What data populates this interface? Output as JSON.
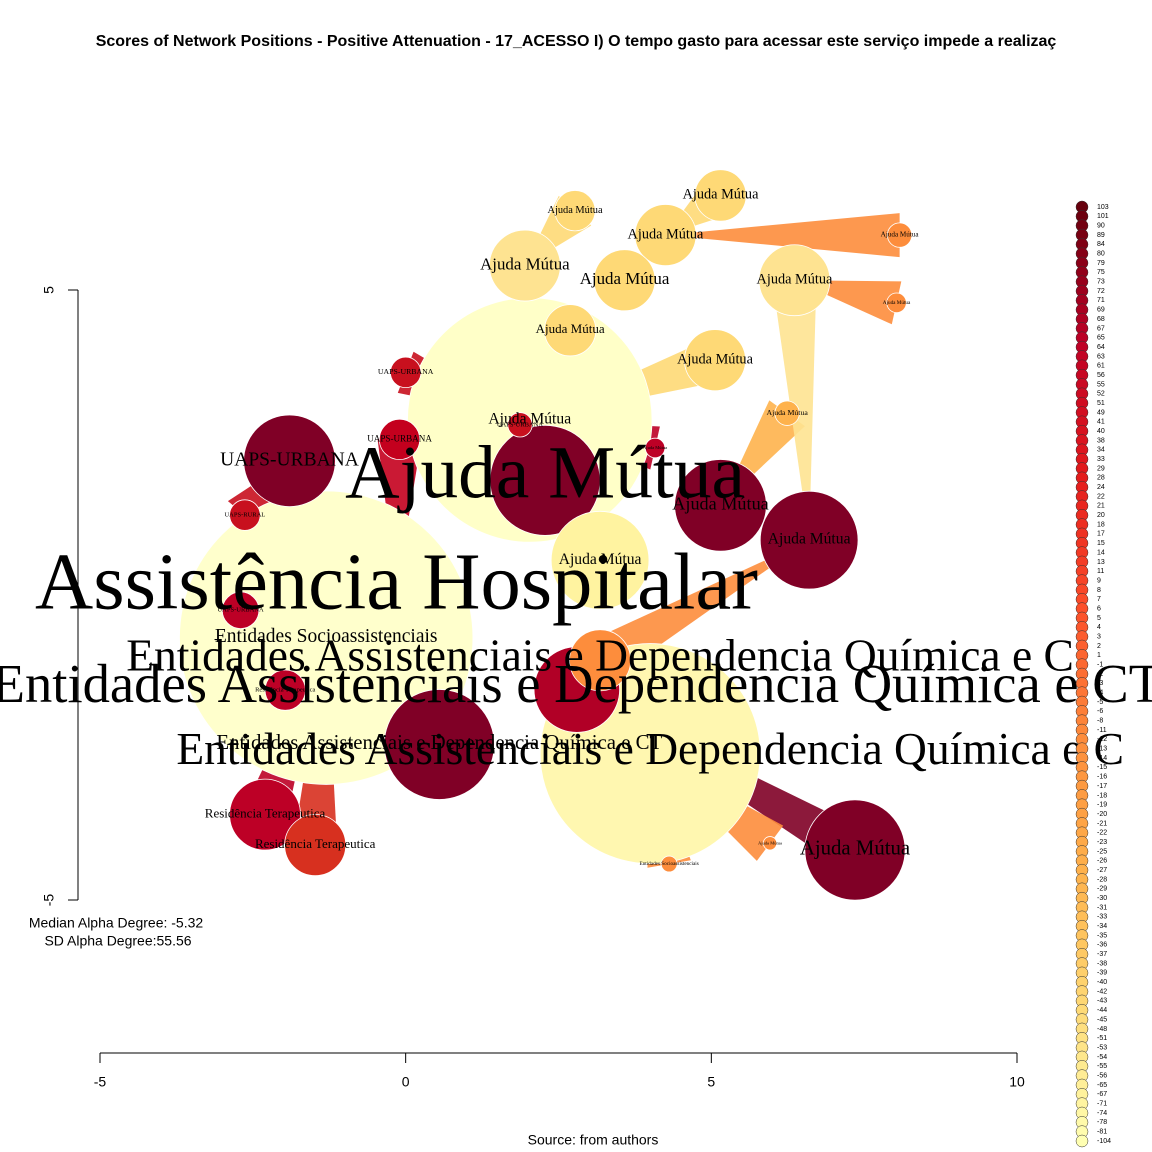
{
  "chart_data": {
    "type": "network",
    "title": "Scores of Network Positions - Positive Attenuation - 17_ACESSO I) O tempo gasto para acessar este serviço impede a realizaç",
    "xlim": [
      -5,
      10
    ],
    "xticks": [
      -5,
      0,
      5,
      10
    ],
    "ylim": [
      -5,
      5
    ],
    "yticks": [
      -5,
      5
    ],
    "annotations": [
      "Median Alpha Degree: -5.32",
      "SD Alpha Degree:55.56"
    ],
    "source": "Source: from authors",
    "palette": [
      "#67000d",
      "#bd0026",
      "#e31a1c",
      "#fc4e2a",
      "#fd8d3c",
      "#feb24c",
      "#fed976",
      "#ffffb2"
    ],
    "legend": {
      "values": [
        103,
        101,
        90,
        89,
        84,
        80,
        79,
        75,
        73,
        72,
        71,
        69,
        68,
        67,
        65,
        64,
        63,
        61,
        56,
        55,
        52,
        51,
        49,
        41,
        40,
        38,
        34,
        33,
        29,
        28,
        24,
        22,
        21,
        20,
        18,
        17,
        15,
        14,
        13,
        11,
        9,
        8,
        7,
        6,
        5,
        4,
        3,
        2,
        1,
        -1,
        -2,
        -3,
        -4,
        -5,
        -6,
        -8,
        -11,
        -12,
        -13,
        -14,
        -15,
        -16,
        -17,
        -18,
        -19,
        -20,
        -21,
        -22,
        -23,
        -25,
        -26,
        -27,
        -28,
        -29,
        -30,
        -31,
        -33,
        -34,
        -35,
        -36,
        -37,
        -38,
        -39,
        -40,
        -42,
        -43,
        -44,
        -45,
        -48,
        -51,
        -53,
        -54,
        -55,
        -56,
        -65,
        -67,
        -71,
        -74,
        -78,
        -81,
        -104
      ]
    },
    "nodes": [
      {
        "x": 4.0,
        "y": -2.6,
        "size": 1.8,
        "color": "#fff7b0",
        "label": "Entidades Assistenciais e Dependencia Química e C",
        "cex": 3.5
      },
      {
        "x": 2.03,
        "y": 2.87,
        "size": 2.0,
        "color": "#ffffc8",
        "label": "Ajuda Mútua",
        "cex": 1.2
      },
      {
        "x": 2.28,
        "y": 1.88,
        "size": 0.9,
        "color": "#800026",
        "label": "Ajuda Mútua",
        "cex": 5.8
      },
      {
        "x": -0.15,
        "y": 0.08,
        "size": 0.6,
        "color": "#e31a1c",
        "label": "Assistência Hospitalar",
        "cex": 6.2
      },
      {
        "x": 2.8,
        "y": -1.55,
        "size": 0.7,
        "color": "#b10026",
        "label": "Entidades Assistenciais e Dependencia Química e CT",
        "cex": 4.2
      },
      {
        "x": 3.18,
        "y": -1.07,
        "size": 0.5,
        "color": "#fd8d3c",
        "label": "Entidades Assistenciais e Dependencia Química e C",
        "cex": 3.5
      },
      {
        "x": -1.3,
        "y": -0.7,
        "size": 2.4,
        "color": "#ffffcc",
        "label": "Entidades Socioassistenciais",
        "cex": 1.5
      },
      {
        "x": -1.9,
        "y": 2.2,
        "size": 0.75,
        "color": "#800026",
        "label": "UAPS-URBANA",
        "cex": 1.5
      },
      {
        "x": 6.6,
        "y": 0.9,
        "size": 0.8,
        "color": "#800026",
        "label": "Ajuda Mútua",
        "cex": 1.2
      },
      {
        "x": 7.35,
        "y": -4.18,
        "size": 0.82,
        "color": "#800026",
        "label": "Ajuda Mútua",
        "cex": 1.6
      },
      {
        "x": 5.15,
        "y": 1.47,
        "size": 0.75,
        "color": "#800026",
        "label": "Ajuda Mútua",
        "cex": 1.4
      },
      {
        "x": 0.55,
        "y": -2.45,
        "size": 0.9,
        "color": "#800026",
        "label": "Entidades Assistenciais e Dependencia Química e CT",
        "cex": 1.6
      },
      {
        "x": -2.3,
        "y": -3.6,
        "size": 0.58,
        "color": "#bd0026",
        "label": "Residência Terapeutica",
        "cex": 1.0
      },
      {
        "x": -1.48,
        "y": -4.1,
        "size": 0.5,
        "color": "#d7301f",
        "label": "Residência Terapeutica",
        "cex": 1.0
      },
      {
        "x": -0.1,
        "y": 2.55,
        "size": 0.33,
        "color": "#c4001e",
        "label": "UAPS-URBANA",
        "cex": 0.7
      },
      {
        "x": 0.0,
        "y": 3.65,
        "size": 0.25,
        "color": "#c8101e",
        "label": "UAPS-URBANA",
        "cex": 0.6
      },
      {
        "x": 1.87,
        "y": 2.79,
        "size": 0.2,
        "color": "#c8101e",
        "label": "UAPS-URBANA",
        "cex": 0.5
      },
      {
        "x": 5.15,
        "y": 6.55,
        "size": 0.42,
        "color": "#fed976",
        "label": "Ajuda Mútua",
        "cex": 1.1
      },
      {
        "x": 2.77,
        "y": 6.3,
        "size": 0.33,
        "color": "#fed976",
        "label": "Ajuda Mútua",
        "cex": 0.8
      },
      {
        "x": 4.25,
        "y": 5.9,
        "size": 0.5,
        "color": "#fed976",
        "label": "Ajuda Mútua",
        "cex": 1.1
      },
      {
        "x": 1.95,
        "y": 5.4,
        "size": 0.58,
        "color": "#fee391",
        "label": "Ajuda Mútua",
        "cex": 1.3
      },
      {
        "x": 3.58,
        "y": 5.16,
        "size": 0.5,
        "color": "#fed976",
        "label": "Ajuda Mútua",
        "cex": 1.3
      },
      {
        "x": 6.36,
        "y": 5.16,
        "size": 0.58,
        "color": "#fee391",
        "label": "Ajuda Mútua",
        "cex": 1.1
      },
      {
        "x": 5.06,
        "y": 3.85,
        "size": 0.5,
        "color": "#fed976",
        "label": "Ajuda Mútua",
        "cex": 1.1
      },
      {
        "x": 2.69,
        "y": 4.34,
        "size": 0.42,
        "color": "#fed976",
        "label": "Ajuda Mútua",
        "cex": 1.0
      },
      {
        "x": 8.08,
        "y": 5.9,
        "size": 0.2,
        "color": "#fd8d3c",
        "label": "Ajuda Mútua",
        "cex": 0.55
      },
      {
        "x": 8.03,
        "y": 4.79,
        "size": 0.16,
        "color": "#fd8d3c",
        "label": "Ajuda Mútua",
        "cex": 0.4
      },
      {
        "x": 6.24,
        "y": 2.98,
        "size": 0.2,
        "color": "#feb24c",
        "label": "Ajuda Mútua",
        "cex": 0.6
      },
      {
        "x": 4.31,
        "y": -4.41,
        "size": 0.13,
        "color": "#fd8d3c",
        "label": "Entidades Socioassistenciais",
        "cex": 0.4
      },
      {
        "x": 5.96,
        "y": -4.07,
        "size": 0.11,
        "color": "#fd8d3c",
        "label": "Ajuda Mútua",
        "cex": 0.35
      },
      {
        "x": 4.08,
        "y": 2.41,
        "size": 0.16,
        "color": "#bd0026",
        "label": "Ajuda Mútua",
        "cex": 0.35
      },
      {
        "x": -2.63,
        "y": 1.31,
        "size": 0.25,
        "color": "#c8101e",
        "label": "UAPS-RURAL",
        "cex": 0.5
      },
      {
        "x": -2.7,
        "y": -0.25,
        "size": 0.3,
        "color": "#bd0026",
        "label": "UAPS-URBANA",
        "cex": 0.5
      },
      {
        "x": -1.97,
        "y": -1.56,
        "size": 0.33,
        "color": "#bd0026",
        "label": "Residência Terapeutica",
        "cex": 0.5
      },
      {
        "x": 3.18,
        "y": 0.57,
        "size": 0.8,
        "color": "#fff3a0",
        "label": "Ajuda Mútua",
        "cex": 1.2
      }
    ],
    "edges": [
      [
        25,
        19
      ],
      [
        26,
        22
      ],
      [
        27,
        10
      ],
      [
        22,
        8
      ],
      [
        17,
        19
      ],
      [
        12,
        6
      ],
      [
        13,
        6
      ],
      [
        33,
        6
      ],
      [
        31,
        7
      ],
      [
        9,
        4
      ],
      [
        29,
        0
      ],
      [
        28,
        0
      ],
      [
        32,
        6
      ],
      [
        3,
        7
      ],
      [
        5,
        8
      ],
      [
        15,
        1
      ],
      [
        18,
        20
      ],
      [
        30,
        1
      ],
      [
        14,
        3
      ],
      [
        16,
        2
      ],
      [
        24,
        1
      ],
      [
        23,
        1
      ]
    ]
  }
}
